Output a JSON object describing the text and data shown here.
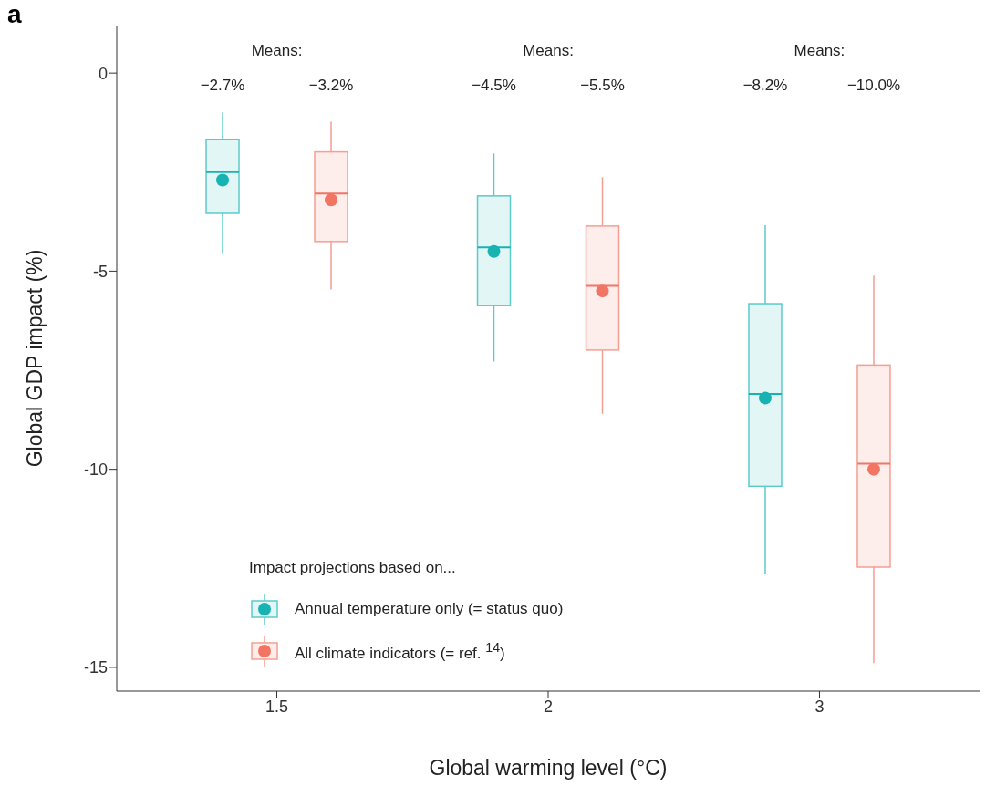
{
  "chart_data": {
    "type": "box",
    "title": "a",
    "xlabel": "Global warming level (°C)",
    "ylabel": "Global GDP impact (%)",
    "legend_title": "Impact projections based on...",
    "categories": [
      "1.5",
      "2",
      "3"
    ],
    "ylim": [
      -15.6,
      1.2
    ],
    "yticks": [
      0,
      -5,
      -10,
      -15
    ],
    "grid": false,
    "legend": "bottom left",
    "marker": "circle",
    "series": [
      {
        "name": "Annual temperature only (= status quo)",
        "color": "#17b3b3",
        "boxes": [
          {
            "low": -4.57,
            "q1": -3.54,
            "median": -2.5,
            "q3": -1.67,
            "high": -1.0,
            "mean": -2.7
          },
          {
            "low": -7.28,
            "q1": -5.87,
            "median": -4.4,
            "q3": -3.1,
            "high": -2.03,
            "mean": -4.5
          },
          {
            "low": -12.63,
            "q1": -10.43,
            "median": -8.1,
            "q3": -5.82,
            "high": -3.84,
            "mean": -8.2
          }
        ]
      },
      {
        "name": "All climate indicators (= ref. $^{14}$)",
        "color": "#f27563",
        "boxes": [
          {
            "low": -5.46,
            "q1": -4.25,
            "median": -3.04,
            "q3": -1.99,
            "high": -1.23,
            "mean": -3.2
          },
          {
            "low": -8.6,
            "q1": -6.99,
            "median": -5.37,
            "q3": -3.86,
            "high": -2.63,
            "mean": -5.5
          },
          {
            "low": -14.89,
            "q1": -12.47,
            "median": -9.86,
            "q3": -7.37,
            "high": -5.11,
            "mean": -10.0
          }
        ]
      }
    ],
    "annotations": [
      "Means:",
      "−2.7%",
      "−3.2%",
      "Means:",
      "−4.5%",
      "−5.5%",
      "Means:",
      "−8.2%",
      "−10.0%"
    ]
  }
}
